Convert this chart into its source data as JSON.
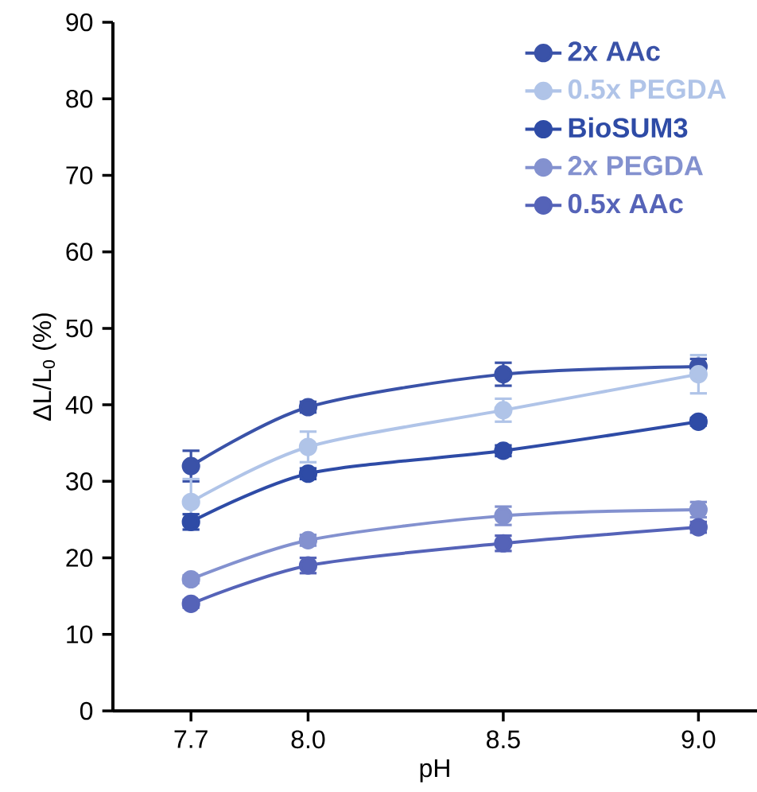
{
  "chart_data": {
    "type": "line",
    "xlabel": "pH",
    "ylabel": "ΔL/L$_{0}$ (%)",
    "x": [
      7.7,
      8.0,
      8.5,
      9.0
    ],
    "series": [
      {
        "name": "2x AAc",
        "color": "#3a52a8",
        "values": [
          32,
          39.7,
          44,
          45
        ],
        "errors": [
          2,
          0.7,
          1.5,
          1
        ]
      },
      {
        "name": "0.5x PEGDA",
        "color": "#b0c4e8",
        "values": [
          27.3,
          34.5,
          39.3,
          44
        ],
        "errors": [
          3,
          2,
          1.5,
          2.5
        ]
      },
      {
        "name": "BioSUM3",
        "color": "#2e4ba6",
        "values": [
          24.7,
          31,
          34,
          37.8
        ],
        "errors": [
          1,
          0.7,
          0.7,
          0.5
        ]
      },
      {
        "name": "2x PEGDA",
        "color": "#8391cf",
        "values": [
          17.2,
          22.3,
          25.5,
          26.3
        ],
        "errors": [
          0.5,
          0.7,
          1.2,
          1
        ]
      },
      {
        "name": "0.5x AAc",
        "color": "#5563b8",
        "values": [
          14,
          19,
          21.9,
          24
        ],
        "errors": [
          0.5,
          1,
          1,
          0.7
        ]
      }
    ],
    "xlim": [
      7.5,
      9.15
    ],
    "ylim": [
      0,
      90
    ],
    "xticks": [
      7.7,
      {
        "value": 8.0,
        "label": "8.0"
      },
      8.5,
      {
        "value": 9.0,
        "label": "9.0"
      }
    ],
    "yticks": [
      0,
      10,
      20,
      30,
      40,
      50,
      60,
      70,
      80,
      90
    ],
    "marker": "circle",
    "grid": false,
    "legend": "top right"
  }
}
